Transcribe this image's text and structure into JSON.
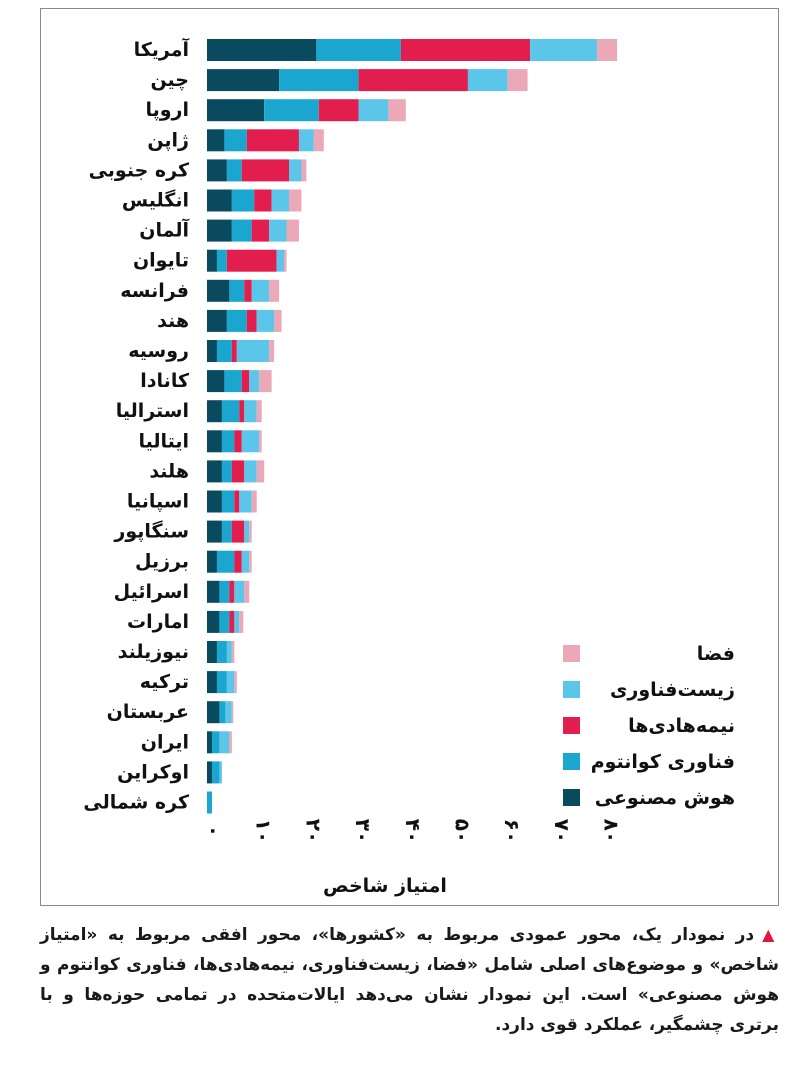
{
  "chart_data": {
    "type": "bar",
    "orientation": "horizontal",
    "stacked": true,
    "categories": [
      "آمریکا",
      "چین",
      "اروپا",
      "ژاپن",
      "کره جنوبی",
      "انگلیس",
      "آلمان",
      "تایوان",
      "فرانسه",
      "هند",
      "روسیه",
      "کانادا",
      "استرالیا",
      "ایتالیا",
      "هلند",
      "اسپانیا",
      "سنگاپور",
      "برزیل",
      "اسرائیل",
      "امارات",
      "نیوزیلند",
      "ترکیه",
      "عربستان",
      "ایران",
      "اوکراین",
      "کره شمالی"
    ],
    "series": [
      {
        "name": "هوش مصنوعی",
        "color": "#0a4a5e",
        "values": [
          22,
          14.5,
          11.5,
          3.5,
          4,
          5,
          5,
          2,
          4.5,
          4,
          2,
          3.5,
          3,
          3,
          3,
          3,
          3,
          2,
          2.5,
          2.5,
          2,
          2,
          2.5,
          1,
          1,
          0
        ]
      },
      {
        "name": "فناوری کوانتوم",
        "color": "#1aa6cf",
        "values": [
          17,
          16,
          11,
          4.5,
          3,
          4.5,
          4,
          2,
          3,
          4,
          3,
          3.5,
          3.5,
          2.5,
          2,
          2.5,
          2,
          3.5,
          2,
          2,
          2,
          2,
          1.2,
          1.5,
          1.5,
          1
        ]
      },
      {
        "name": "نیمه‌هادی‌ها",
        "color": "#e21e4e",
        "values": [
          26,
          22,
          8,
          10.5,
          9.5,
          3.5,
          3.5,
          10,
          1.5,
          2,
          1,
          1.5,
          1,
          1.5,
          2.5,
          1,
          2.5,
          1.5,
          1,
          1,
          0,
          0,
          0,
          0,
          0,
          0
        ]
      },
      {
        "name": "زیست‌فناوری",
        "color": "#5cc6ea",
        "values": [
          13.5,
          8,
          6,
          3,
          2.5,
          3.5,
          3.5,
          1.5,
          3.5,
          3.5,
          6.5,
          2,
          2.5,
          3.5,
          2.5,
          2.5,
          1,
          1.5,
          2,
          1,
          1,
          1.5,
          1.3,
          2,
          0.5,
          0
        ]
      },
      {
        "name": "فضا",
        "color": "#eba8b7",
        "values": [
          4,
          4,
          3.5,
          2,
          1,
          2.5,
          2.5,
          0.5,
          2,
          1.5,
          1,
          2.5,
          1,
          0.5,
          1.5,
          1,
          0.5,
          0.5,
          1,
          0.8,
          0.5,
          0.5,
          0.3,
          0.5,
          0,
          0
        ]
      }
    ],
    "legend_order": [
      "فضا",
      "زیست‌فناوری",
      "نیمه‌هادی‌ها",
      "فناوری کوانتوم",
      "هوش مصنوعی"
    ],
    "legend_position": "bottom-right",
    "xlabel": "امتیاز شاخص",
    "xlim": [
      0,
      80
    ],
    "xticks": [
      0,
      10,
      20,
      30,
      40,
      50,
      60,
      70,
      80
    ],
    "xtick_labels": [
      "۰",
      "۱۰",
      "۲۰",
      "۳۰",
      "۴۰",
      "۵۰",
      "۶۰",
      "۷۰",
      "۸۰"
    ],
    "grid": false
  },
  "caption": {
    "text": "در نمودار یک، محور عمودی مربوط به «کشورها»، محور افقی مربوط به «امتیاز شاخص» و موضوع‌های اصلی شامل «فضا، زیست‌فناوری، نیمه‌هادی‌ها، فناوری کوانتوم و هوش مصنوعی» است. این نمودار نشان می‌دهد ایالات‌متحده در تمامی حوزه‌ها و با برتری چشمگیر، عملکرد قوی دارد.",
    "marker_color": "#e3173e"
  }
}
